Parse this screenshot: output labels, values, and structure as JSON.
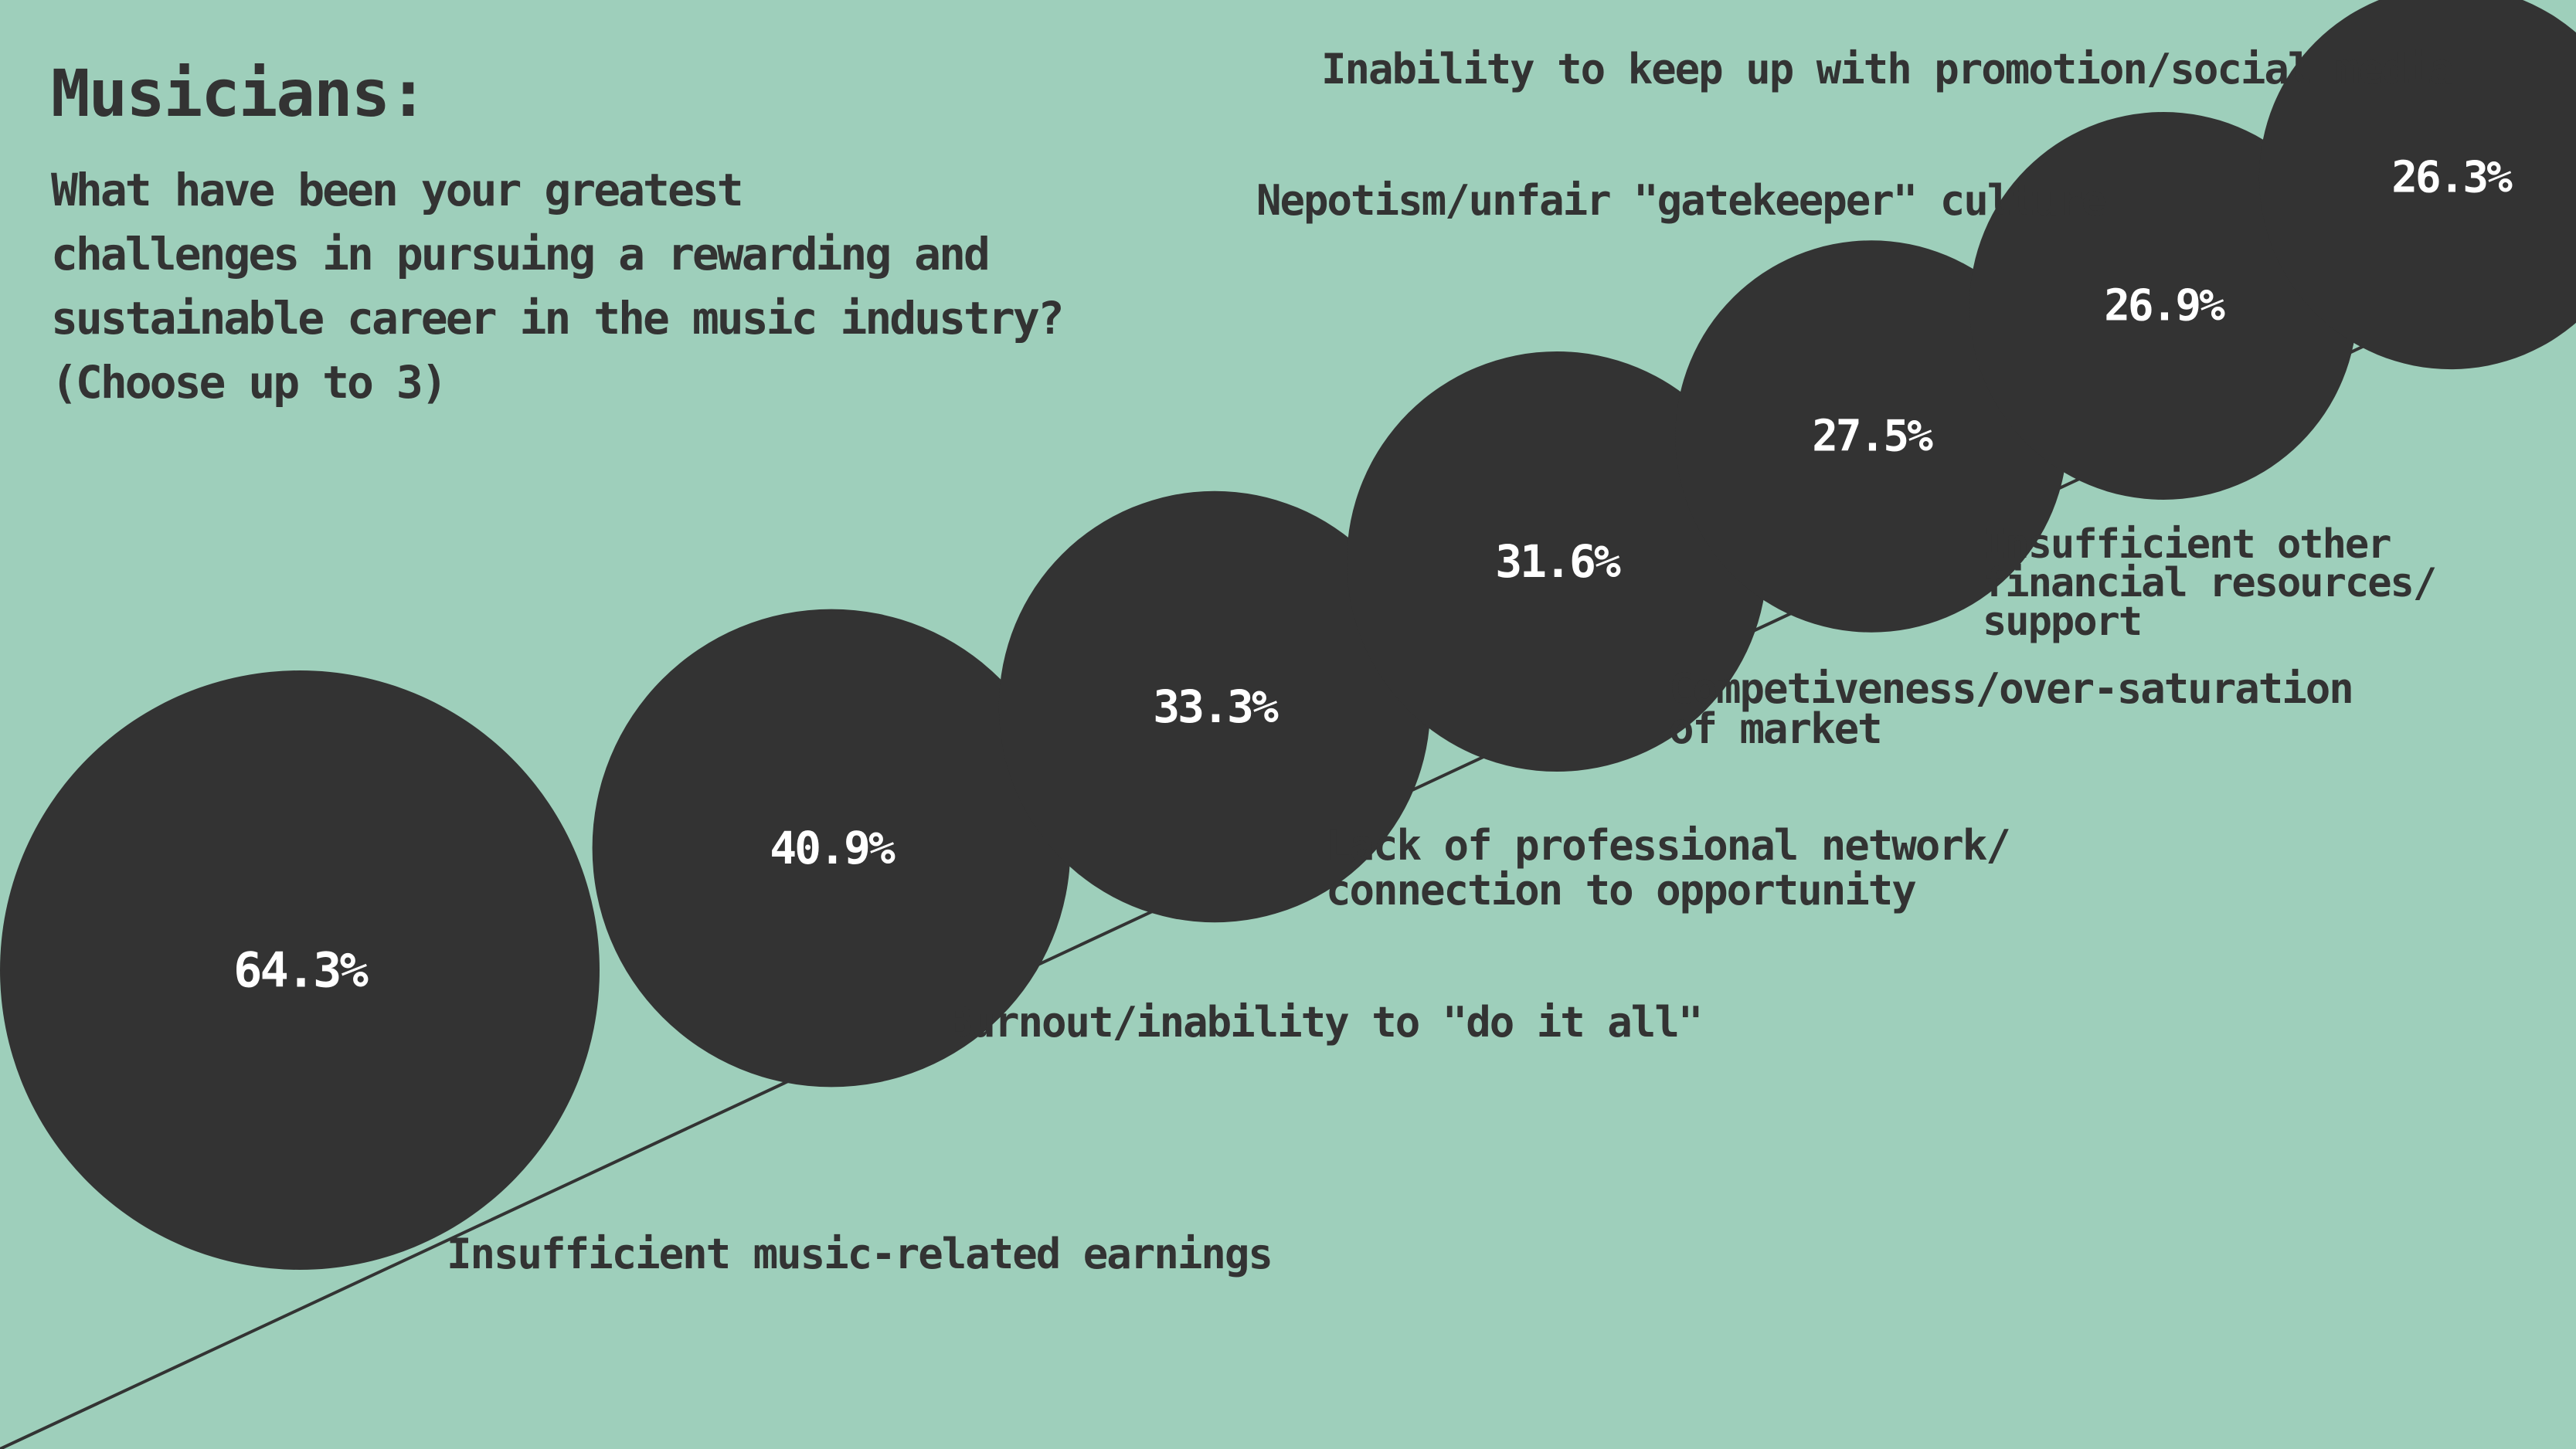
{
  "heading": "Musicians:",
  "question_lines": [
    "What have been your greatest",
    "challenges in pursuing a rewarding and",
    "sustainable career in the music industry?",
    "(Choose up to 3)"
  ],
  "colors": {
    "background": "#9ecfbb",
    "bubble": "#333333",
    "value_text": "#ffffff",
    "label_text": "#333333",
    "line": "#333333"
  },
  "chart_data": {
    "type": "bubble",
    "unit": "%",
    "categories": [
      [
        "Insufficient music-related earnings"
      ],
      [
        "Burnout/inability to \"do it all\""
      ],
      [
        "Lack of professional network/",
        "connection to opportunity"
      ],
      [
        "Competiveness/over-saturation",
        "of market"
      ],
      [
        "Insufficient other",
        "financial resources/",
        "support"
      ],
      [
        "Nepotism/unfair \"gatekeeper\" culture"
      ],
      [
        "Inability to keep up with promotion/social media"
      ]
    ],
    "values": [
      64.3,
      40.9,
      33.3,
      31.6,
      27.5,
      26.9,
      26.3
    ],
    "value_labels": [
      "64.3%",
      "40.9%",
      "33.3%",
      "31.6%",
      "27.5%",
      "26.9%",
      "26.3%"
    ]
  }
}
